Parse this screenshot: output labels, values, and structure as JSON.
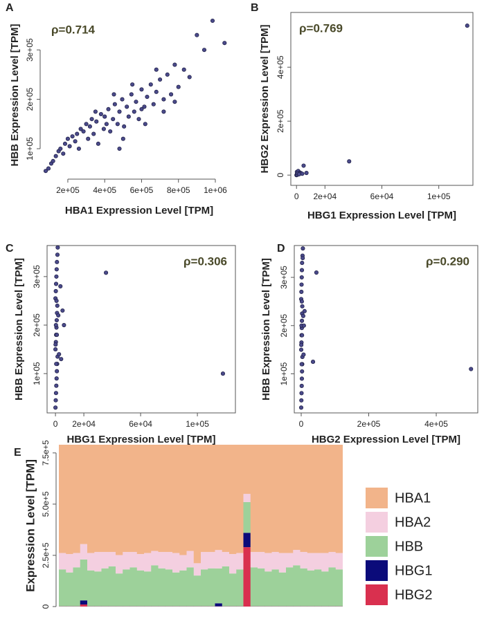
{
  "chart_data": [
    {
      "type": "scatter",
      "panel_label": "A",
      "annotation": "ρ=0.714",
      "xlabel": "HBA1 Expression Level [TPM]",
      "ylabel": "HBB Expression Level [TPM]",
      "color": "#4a4a8a",
      "frame": false,
      "xlim": [
        65000,
        1109000
      ],
      "ylim": [
        44000,
        373000
      ],
      "xticks": [
        {
          "value": 200000,
          "label": "2e+05"
        },
        {
          "value": 400000,
          "label": "4e+05"
        },
        {
          "value": 600000,
          "label": "6e+05"
        },
        {
          "value": 800000,
          "label": "8e+05"
        },
        {
          "value": 1000000,
          "label": "1e+06"
        }
      ],
      "yticks": [
        {
          "value": 100000,
          "label": "1e+05"
        },
        {
          "value": 200000,
          "label": "2e+05"
        },
        {
          "value": 300000,
          "label": "3e+05"
        }
      ],
      "x": [
        80000,
        95000,
        110000,
        120000,
        135000,
        150000,
        160000,
        175000,
        185000,
        200000,
        210000,
        225000,
        240000,
        250000,
        260000,
        270000,
        285000,
        300000,
        310000,
        320000,
        330000,
        340000,
        355000,
        365000,
        380000,
        395000,
        400000,
        410000,
        420000,
        430000,
        445000,
        455000,
        470000,
        480000,
        495000,
        505000,
        520000,
        530000,
        545000,
        560000,
        570000,
        585000,
        600000,
        615000,
        630000,
        650000,
        665000,
        680000,
        700000,
        720000,
        740000,
        760000,
        780000,
        800000,
        830000,
        860000,
        900000,
        940000,
        985000,
        1050000,
        350000,
        450000,
        500000,
        550000,
        620000,
        680000,
        720000,
        600000,
        480000,
        780000
      ],
      "y": [
        55000,
        60000,
        70000,
        75000,
        85000,
        95000,
        100000,
        90000,
        110000,
        120000,
        105000,
        125000,
        115000,
        130000,
        100000,
        140000,
        135000,
        150000,
        120000,
        145000,
        160000,
        130000,
        155000,
        110000,
        170000,
        140000,
        165000,
        150000,
        180000,
        135000,
        160000,
        190000,
        150000,
        175000,
        200000,
        145000,
        185000,
        165000,
        210000,
        175000,
        195000,
        160000,
        220000,
        185000,
        205000,
        230000,
        190000,
        215000,
        240000,
        200000,
        250000,
        210000,
        270000,
        225000,
        260000,
        245000,
        330000,
        300000,
        359000,
        314000,
        175000,
        210000,
        120000,
        230000,
        150000,
        260000,
        175000,
        180000,
        100000,
        195000
      ]
    },
    {
      "type": "scatter",
      "panel_label": "B",
      "annotation": "ρ=0.769",
      "xlabel": "HBG1 Expression Level [TPM]",
      "ylabel": "HBG2 Expression Level [TPM]",
      "color": "#4a4a8a",
      "frame": true,
      "xlim": [
        -4000,
        124000
      ],
      "ylim": [
        -38000,
        603000
      ],
      "xticks": [
        0,
        {
          "value": 20000,
          "label": "2e+04"
        },
        {
          "value": 60000,
          "label": "6e+04"
        },
        {
          "value": 100000,
          "label": "1e+05"
        }
      ],
      "yticks": [
        0,
        {
          "value": 200000,
          "label": "2e+05"
        },
        {
          "value": 400000,
          "label": "4e+05"
        }
      ],
      "x": [
        0,
        200,
        500,
        800,
        1000,
        1500,
        2000,
        300,
        600,
        1200,
        2500,
        3000,
        4000,
        5000,
        7000,
        37000,
        120000,
        400,
        900,
        1800
      ],
      "y": [
        0,
        2000,
        5000,
        8000,
        3000,
        10000,
        6000,
        12000,
        4000,
        15000,
        9000,
        7000,
        5000,
        35000,
        8000,
        51000,
        554000,
        1000,
        6000,
        3000
      ]
    },
    {
      "type": "scatter",
      "panel_label": "C",
      "annotation": "ρ=0.306",
      "xlabel": "HBG1 Expression Level [TPM]",
      "ylabel": "HBB Expression Level [TPM]",
      "color": "#4a4a8a",
      "frame": true,
      "xlim": [
        -5900,
        126800
      ],
      "ylim": [
        19000,
        364000
      ],
      "xticks": [
        0,
        {
          "value": 20000,
          "label": "2e+04"
        },
        {
          "value": 60000,
          "label": "6e+04"
        },
        {
          "value": 100000,
          "label": "1e+05"
        }
      ],
      "yticks": [
        {
          "value": 100000,
          "label": "1e+05"
        },
        {
          "value": 200000,
          "label": "2e+05"
        },
        {
          "value": 300000,
          "label": "3e+05"
        }
      ],
      "x": [
        0,
        200,
        400,
        600,
        800,
        1000,
        1200,
        1500,
        0,
        300,
        500,
        700,
        900,
        1100,
        1300,
        0,
        250,
        450,
        650,
        850,
        1050,
        1400,
        1600,
        100,
        350,
        550,
        750,
        950,
        2000,
        2500,
        5000,
        6000,
        4000,
        3500,
        35600,
        118000
      ],
      "y": [
        30000,
        45000,
        60000,
        75000,
        90000,
        105000,
        120000,
        135000,
        150000,
        165000,
        180000,
        195000,
        210000,
        225000,
        240000,
        255000,
        270000,
        285000,
        300000,
        315000,
        330000,
        345000,
        360000,
        160000,
        200000,
        120000,
        250000,
        180000,
        220000,
        140000,
        230000,
        200000,
        130000,
        280000,
        308000,
        100000
      ]
    },
    {
      "type": "scatter",
      "panel_label": "D",
      "annotation": "ρ=0.290",
      "xlabel": "HBG2 Expression Level [TPM]",
      "ylabel": "HBB Expression Level [TPM]",
      "color": "#4a4a8a",
      "frame": true,
      "xlim": [
        -20500,
        523000
      ],
      "ylim": [
        19000,
        366000
      ],
      "xticks": [
        0,
        {
          "value": 200000,
          "label": "2e+05"
        },
        {
          "value": 400000,
          "label": "4e+05"
        }
      ],
      "yticks": [
        {
          "value": 100000,
          "label": "1e+05"
        },
        {
          "value": 200000,
          "label": "2e+05"
        },
        {
          "value": 300000,
          "label": "3e+05"
        }
      ],
      "x": [
        0,
        500,
        1000,
        1500,
        2000,
        2500,
        3000,
        3500,
        0,
        800,
        1200,
        1800,
        2200,
        2800,
        3200,
        0,
        600,
        1100,
        1600,
        2100,
        2600,
        4000,
        5000,
        300,
        900,
        1400,
        1900,
        2400,
        6000,
        7000,
        10000,
        8000,
        4500,
        45000,
        35000,
        503000
      ],
      "y": [
        30000,
        45000,
        60000,
        75000,
        90000,
        105000,
        120000,
        135000,
        150000,
        165000,
        180000,
        195000,
        210000,
        225000,
        240000,
        255000,
        270000,
        285000,
        300000,
        315000,
        330000,
        345000,
        360000,
        160000,
        200000,
        120000,
        250000,
        180000,
        220000,
        140000,
        230000,
        200000,
        340000,
        310000,
        125000,
        110000
      ]
    },
    {
      "type": "stacked_bar",
      "panel_label": "E",
      "ylabel": "Expression Level [TPM]",
      "ylim": [
        0,
        790000
      ],
      "yticks": [
        0,
        {
          "value": 250000,
          "label": "2.5e+5"
        },
        {
          "value": 500000,
          "label": "5.0e+5"
        },
        {
          "value": 750000,
          "label": "7.5e+5"
        }
      ],
      "series": [
        {
          "name": "HBG2",
          "color": "#d9304f",
          "values": [
            1000,
            1000,
            1000,
            10000,
            1000,
            1000,
            1000,
            1000,
            1000,
            1000,
            1000,
            1000,
            1000,
            1000,
            1000,
            1000,
            1000,
            1000,
            1000,
            1000,
            1000,
            1000,
            1000,
            1000,
            1000,
            1000,
            290000,
            1000,
            1000,
            1000,
            1000,
            1000,
            1000,
            1000,
            1000,
            1000,
            1000,
            1000,
            1000,
            1000
          ]
        },
        {
          "name": "HBG1",
          "color": "#0b0b7a",
          "values": [
            500,
            500,
            500,
            20000,
            500,
            500,
            500,
            500,
            500,
            500,
            500,
            500,
            500,
            500,
            500,
            500,
            500,
            500,
            500,
            500,
            500,
            500,
            15000,
            500,
            500,
            500,
            70000,
            500,
            500,
            500,
            500,
            500,
            500,
            500,
            500,
            500,
            500,
            500,
            500,
            500
          ]
        },
        {
          "name": "HBB",
          "color": "#9dd19a",
          "values": [
            180000,
            165000,
            190000,
            200000,
            175000,
            170000,
            185000,
            195000,
            160000,
            180000,
            190000,
            175000,
            170000,
            200000,
            185000,
            180000,
            165000,
            175000,
            190000,
            150000,
            180000,
            185000,
            170000,
            195000,
            160000,
            180000,
            150000,
            190000,
            185000,
            170000,
            180000,
            165000,
            190000,
            200000,
            185000,
            175000,
            180000,
            170000,
            190000,
            180000
          ]
        },
        {
          "name": "HBA2",
          "color": "#f4cfe0",
          "values": [
            80000,
            90000,
            70000,
            75000,
            85000,
            95000,
            80000,
            70000,
            90000,
            85000,
            75000,
            80000,
            90000,
            70000,
            80000,
            85000,
            95000,
            75000,
            80000,
            60000,
            85000,
            80000,
            90000,
            70000,
            95000,
            80000,
            40000,
            75000,
            80000,
            90000,
            85000,
            95000,
            70000,
            75000,
            80000,
            85000,
            80000,
            90000,
            75000,
            80000
          ]
        },
        {
          "name": "HBA1",
          "color": "#f2b48a",
          "values": [
            540000,
            545000,
            540000,
            505000,
            540000,
            535000,
            535000,
            535000,
            550000,
            535000,
            535000,
            545000,
            540000,
            530000,
            535000,
            535000,
            540000,
            550000,
            530000,
            590000,
            535000,
            535000,
            525000,
            535000,
            545000,
            540000,
            260000,
            535000,
            535000,
            540000,
            535000,
            540000,
            540000,
            525000,
            535000,
            540000,
            540000,
            540000,
            535000,
            540000
          ]
        }
      ],
      "legend_order": [
        "HBA1",
        "HBA2",
        "HBB",
        "HBG1",
        "HBG2"
      ]
    }
  ]
}
